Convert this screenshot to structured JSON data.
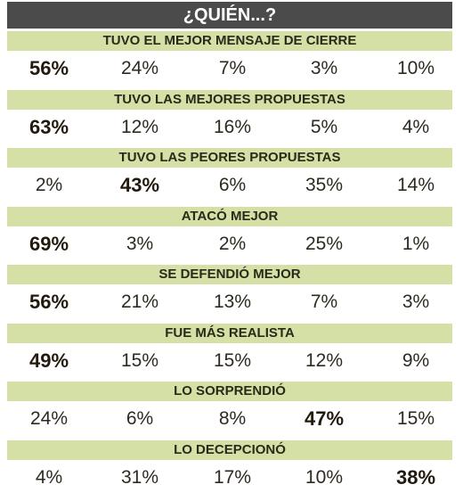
{
  "header": {
    "title": "¿QUIÉN...?"
  },
  "sections": [
    {
      "label": "TUVO EL MEJOR MENSAJE DE CIERRE",
      "values": [
        "56%",
        "24%",
        "7%",
        "3%",
        "10%"
      ]
    },
    {
      "label": "TUVO LAS MEJORES PROPUESTAS",
      "values": [
        "63%",
        "12%",
        "16%",
        "5%",
        "4%"
      ]
    },
    {
      "label": "TUVO LAS PEORES PROPUESTAS",
      "values": [
        "2%",
        "43%",
        "6%",
        "35%",
        "14%"
      ]
    },
    {
      "label": "ATACÓ MEJOR",
      "values": [
        "69%",
        "3%",
        "2%",
        "25%",
        "1%"
      ]
    },
    {
      "label": "SE DEFENDIÓ MEJOR",
      "values": [
        "56%",
        "21%",
        "13%",
        "7%",
        "3%"
      ]
    },
    {
      "label": "FUE MÁS REALISTA",
      "values": [
        "49%",
        "15%",
        "15%",
        "12%",
        "9%"
      ]
    },
    {
      "label": "LO SORPRENDIÓ",
      "values": [
        "24%",
        "6%",
        "8%",
        "47%",
        "15%"
      ]
    },
    {
      "label": "LO DECEPCIONÓ",
      "values": [
        "4%",
        "31%",
        "17%",
        "10%",
        "38%"
      ]
    }
  ]
}
